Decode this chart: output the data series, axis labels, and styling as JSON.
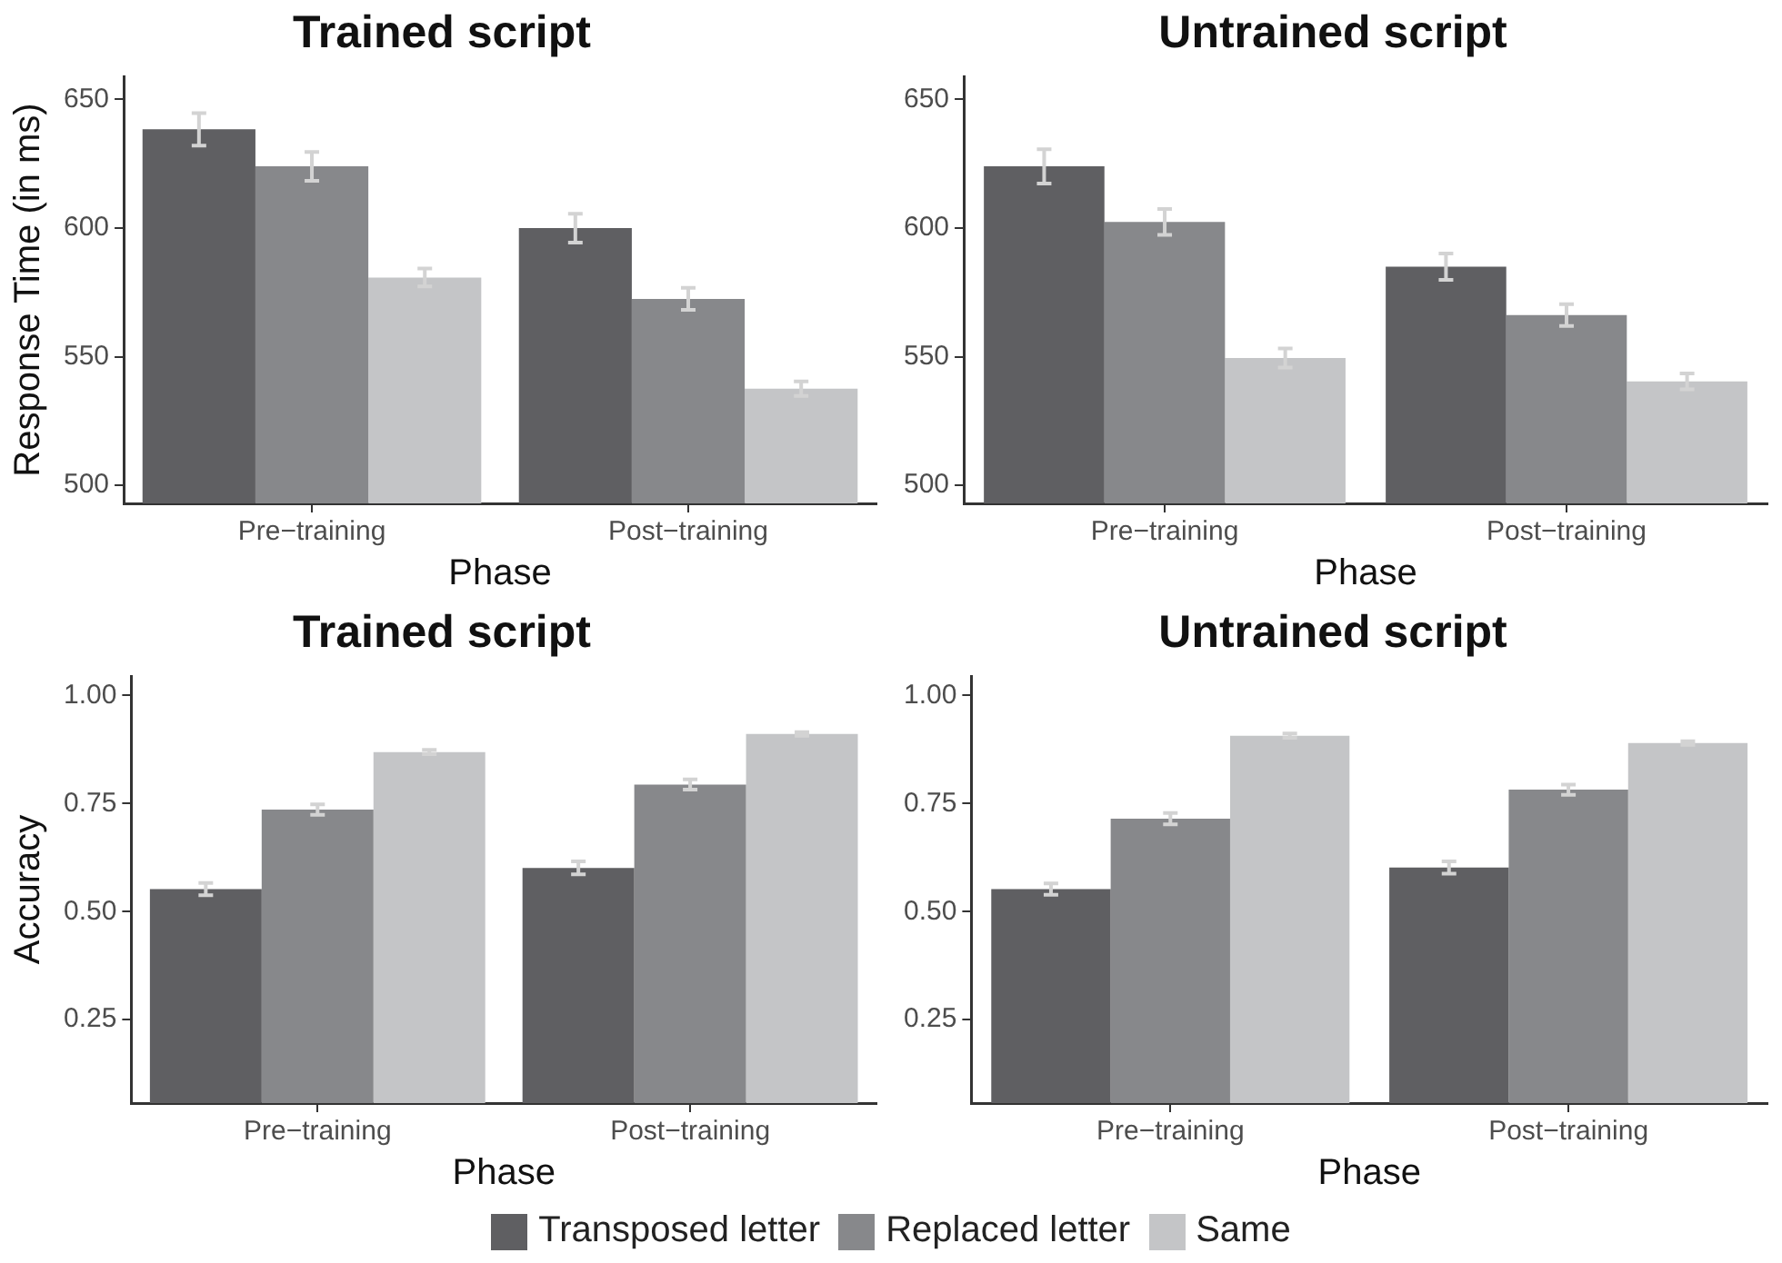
{
  "chart_data": [
    {
      "type": "bar",
      "title": "Trained script",
      "xlabel": "Phase",
      "ylabel": "Response Time (in ms)",
      "categories": [
        "Pre−training",
        "Post−training"
      ],
      "series": [
        {
          "color": "#5f5f62",
          "values": [
            638.4,
            600
          ],
          "errors": [
            6.3,
            5.6
          ]
        },
        {
          "color": "#87888b",
          "values": [
            624,
            572.5
          ],
          "errors": [
            5.6,
            4.3
          ]
        },
        {
          "color": "#c4c5c7",
          "values": [
            580.8,
            537.6
          ],
          "errors": [
            3.5,
            2.8
          ]
        }
      ],
      "ylim": [
        493,
        659
      ],
      "yticks": [
        500,
        550,
        600,
        650
      ],
      "grid": false,
      "legend": false
    },
    {
      "type": "bar",
      "title": "Untrained script",
      "xlabel": "Phase",
      "categories": [
        "Pre−training",
        "Post−training"
      ],
      "series": [
        {
          "color": "#5f5f62",
          "values": [
            624,
            585
          ],
          "errors": [
            6.7,
            5.1
          ]
        },
        {
          "color": "#87888b",
          "values": [
            602.4,
            566.2
          ],
          "errors": [
            5,
            4.2
          ]
        },
        {
          "color": "#c4c5c7",
          "values": [
            549.5,
            540.4
          ],
          "errors": [
            3.7,
            3.1
          ]
        }
      ],
      "ylim": [
        493,
        659
      ],
      "yticks": [
        500,
        550,
        600,
        650
      ],
      "grid": false,
      "legend": false
    },
    {
      "type": "bar",
      "title": "Trained script",
      "xlabel": "Phase",
      "ylabel": "Accuracy",
      "categories": [
        "Pre−training",
        "Post−training"
      ],
      "series": [
        {
          "color": "#5f5f62",
          "values": [
            0.552,
            0.601
          ],
          "errors": [
            0.014,
            0.015
          ]
        },
        {
          "color": "#87888b",
          "values": [
            0.736,
            0.794
          ],
          "errors": [
            0.012,
            0.012
          ]
        },
        {
          "color": "#c4c5c7",
          "values": [
            0.869,
            0.911
          ],
          "errors": [
            0.005,
            0.004
          ]
        }
      ],
      "ylim": [
        0.057,
        1.045
      ],
      "yticks": [
        {
          "value": 0.25,
          "label": "0.25"
        },
        {
          "value": 0.5,
          "label": "0.50"
        },
        {
          "value": 0.75,
          "label": "0.75"
        },
        {
          "value": 1,
          "label": "1.00"
        }
      ],
      "grid": false,
      "legend": false
    },
    {
      "type": "bar",
      "title": "Untrained script",
      "xlabel": "Phase",
      "categories": [
        "Pre−training",
        "Post−training"
      ],
      "series": [
        {
          "name": "Transposed letter",
          "color": "#5f5f62",
          "values": [
            0.552,
            0.602
          ],
          "errors": [
            0.013,
            0.014
          ]
        },
        {
          "name": "Replaced letter",
          "color": "#87888b",
          "values": [
            0.715,
            0.782
          ],
          "errors": [
            0.013,
            0.012
          ]
        },
        {
          "name": "Same",
          "color": "#c4c5c7",
          "values": [
            0.907,
            0.89
          ],
          "errors": [
            0.005,
            0.004
          ]
        }
      ],
      "ylim": [
        0.057,
        1.045
      ],
      "yticks": [
        {
          "value": 0.25,
          "label": "0.25"
        },
        {
          "value": 0.5,
          "label": "0.50"
        },
        {
          "value": 0.75,
          "label": "0.75"
        },
        {
          "value": 1,
          "label": "1.00"
        }
      ],
      "grid": false,
      "legend": "bottom"
    }
  ]
}
